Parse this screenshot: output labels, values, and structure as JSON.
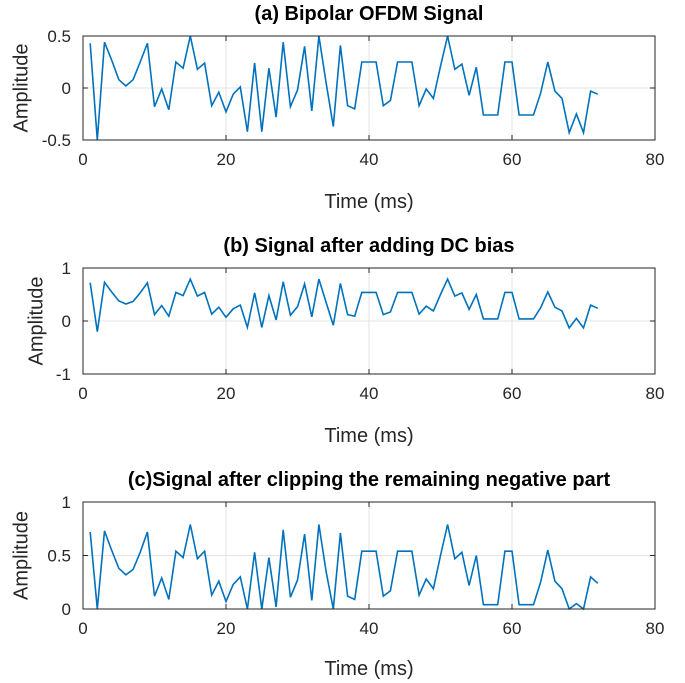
{
  "chart_data": [
    {
      "type": "line",
      "title": "(a) Bipolar OFDM Signal",
      "xlabel": "Time (ms)",
      "ylabel": "Amplitude",
      "xlim": [
        0,
        80
      ],
      "ylim": [
        -0.5,
        0.5
      ],
      "xticks": [
        0,
        20,
        40,
        60,
        80
      ],
      "yticks": [
        -0.5,
        0,
        0.5
      ],
      "ytick_labels": [
        "-0.5",
        "0",
        "0.5"
      ],
      "grid": true,
      "color": "#0072BD",
      "x": [
        1,
        2,
        3,
        4,
        5,
        6,
        7,
        8,
        9,
        10,
        11,
        12,
        13,
        14,
        15,
        16,
        17,
        18,
        19,
        20,
        21,
        22,
        23,
        24,
        25,
        26,
        27,
        28,
        29,
        30,
        31,
        32,
        33,
        34,
        35,
        36,
        37,
        38,
        39,
        40,
        41,
        42,
        43,
        44,
        45,
        46,
        47,
        48,
        49,
        50,
        51,
        52,
        53,
        54,
        55,
        56,
        57,
        58,
        59,
        60,
        61,
        62,
        63,
        64,
        65,
        66,
        67,
        68,
        69,
        70,
        71,
        72
      ],
      "y": [
        0.43,
        -0.5,
        0.44,
        0.27,
        0.08,
        0.02,
        0.08,
        0.25,
        0.43,
        -0.18,
        -0.01,
        -0.21,
        0.25,
        0.19,
        0.5,
        0.18,
        0.24,
        -0.17,
        -0.04,
        -0.23,
        -0.06,
        0.01,
        -0.42,
        0.24,
        -0.42,
        0.19,
        -0.28,
        0.44,
        -0.18,
        -0.02,
        0.4,
        -0.22,
        0.5,
        0.05,
        -0.37,
        0.41,
        -0.17,
        -0.2,
        0.25,
        0.25,
        0.25,
        -0.17,
        -0.12,
        0.25,
        0.25,
        0.25,
        -0.17,
        -0.01,
        -0.1,
        0.21,
        0.5,
        0.18,
        0.23,
        -0.07,
        0.2,
        -0.26,
        -0.26,
        -0.26,
        0.25,
        0.25,
        -0.26,
        -0.26,
        -0.26,
        -0.05,
        0.25,
        -0.03,
        -0.1,
        -0.43,
        -0.25,
        -0.43,
        -0.03,
        -0.06
      ]
    },
    {
      "type": "line",
      "title": "(b) Signal after adding  DC bias",
      "xlabel": "Time (ms)",
      "ylabel": "Amplitude",
      "xlim": [
        0,
        80
      ],
      "ylim": [
        -1,
        1
      ],
      "xticks": [
        0,
        20,
        40,
        60,
        80
      ],
      "yticks": [
        -1,
        0,
        1
      ],
      "ytick_labels": [
        "-1",
        "0",
        "1"
      ],
      "grid": true,
      "color": "#0072BD",
      "x": [
        1,
        2,
        3,
        4,
        5,
        6,
        7,
        8,
        9,
        10,
        11,
        12,
        13,
        14,
        15,
        16,
        17,
        18,
        19,
        20,
        21,
        22,
        23,
        24,
        25,
        26,
        27,
        28,
        29,
        30,
        31,
        32,
        33,
        34,
        35,
        36,
        37,
        38,
        39,
        40,
        41,
        42,
        43,
        44,
        45,
        46,
        47,
        48,
        49,
        50,
        51,
        52,
        53,
        54,
        55,
        56,
        57,
        58,
        59,
        60,
        61,
        62,
        63,
        64,
        65,
        66,
        67,
        68,
        69,
        70,
        71,
        72
      ],
      "y": [
        0.72,
        -0.2,
        0.73,
        0.55,
        0.38,
        0.32,
        0.37,
        0.53,
        0.72,
        0.12,
        0.29,
        0.09,
        0.54,
        0.48,
        0.79,
        0.47,
        0.54,
        0.13,
        0.26,
        0.07,
        0.23,
        0.3,
        -0.12,
        0.53,
        -0.12,
        0.48,
        0.02,
        0.74,
        0.11,
        0.27,
        0.7,
        0.08,
        0.79,
        0.35,
        -0.08,
        0.71,
        0.12,
        0.09,
        0.54,
        0.54,
        0.54,
        0.12,
        0.17,
        0.54,
        0.54,
        0.54,
        0.13,
        0.28,
        0.19,
        0.5,
        0.79,
        0.47,
        0.53,
        0.22,
        0.5,
        0.04,
        0.04,
        0.04,
        0.54,
        0.54,
        0.04,
        0.04,
        0.04,
        0.25,
        0.55,
        0.26,
        0.19,
        -0.13,
        0.05,
        -0.13,
        0.3,
        0.24
      ]
    },
    {
      "type": "line",
      "title": "(c)Signal after clipping the remaining negative part",
      "xlabel": "Time (ms)",
      "ylabel": "Amplitude",
      "xlim": [
        0,
        80
      ],
      "ylim": [
        0,
        1
      ],
      "xticks": [
        0,
        20,
        40,
        60,
        80
      ],
      "yticks": [
        0,
        0.5,
        1
      ],
      "ytick_labels": [
        "0",
        "0.5",
        "1"
      ],
      "grid": true,
      "color": "#0072BD",
      "x": [
        1,
        2,
        3,
        4,
        5,
        6,
        7,
        8,
        9,
        10,
        11,
        12,
        13,
        14,
        15,
        16,
        17,
        18,
        19,
        20,
        21,
        22,
        23,
        24,
        25,
        26,
        27,
        28,
        29,
        30,
        31,
        32,
        33,
        34,
        35,
        36,
        37,
        38,
        39,
        40,
        41,
        42,
        43,
        44,
        45,
        46,
        47,
        48,
        49,
        50,
        51,
        52,
        53,
        54,
        55,
        56,
        57,
        58,
        59,
        60,
        61,
        62,
        63,
        64,
        65,
        66,
        67,
        68,
        69,
        70,
        71,
        72
      ],
      "y": [
        0.72,
        0,
        0.73,
        0.55,
        0.38,
        0.32,
        0.37,
        0.53,
        0.72,
        0.12,
        0.29,
        0.09,
        0.54,
        0.48,
        0.79,
        0.47,
        0.54,
        0.13,
        0.26,
        0.07,
        0.23,
        0.3,
        0,
        0.53,
        0,
        0.48,
        0.02,
        0.74,
        0.11,
        0.27,
        0.7,
        0.08,
        0.79,
        0.35,
        0,
        0.71,
        0.12,
        0.09,
        0.54,
        0.54,
        0.54,
        0.12,
        0.17,
        0.54,
        0.54,
        0.54,
        0.13,
        0.28,
        0.19,
        0.5,
        0.79,
        0.47,
        0.53,
        0.22,
        0.5,
        0.04,
        0.04,
        0.04,
        0.54,
        0.54,
        0.04,
        0.04,
        0.04,
        0.25,
        0.55,
        0.26,
        0.19,
        0,
        0.05,
        0,
        0.3,
        0.24
      ]
    }
  ]
}
